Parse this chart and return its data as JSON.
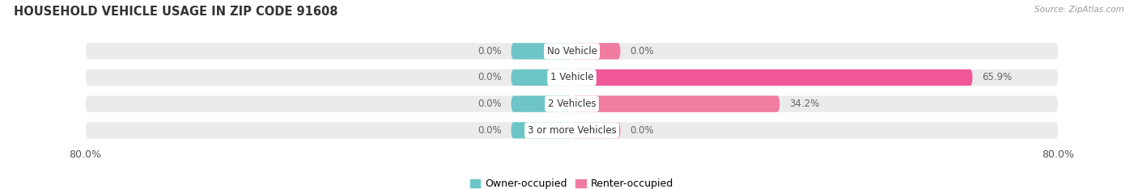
{
  "title": "HOUSEHOLD VEHICLE USAGE IN ZIP CODE 91608",
  "source": "Source: ZipAtlas.com",
  "categories": [
    "No Vehicle",
    "1 Vehicle",
    "2 Vehicles",
    "3 or more Vehicles"
  ],
  "owner_values": [
    0.0,
    0.0,
    0.0,
    0.0
  ],
  "renter_values": [
    0.0,
    65.9,
    34.2,
    0.0
  ],
  "owner_color": "#6ec5c8",
  "renter_color": "#f07ca0",
  "renter_color_bright": "#f0589a",
  "bar_bg_color": "#ebebeb",
  "axis_min": -80.0,
  "axis_max": 80.0,
  "title_fontsize": 10.5,
  "source_fontsize": 7.5,
  "tick_fontsize": 9,
  "bar_height": 0.62,
  "owner_stub": 10.0,
  "renter_stub": 8.0,
  "figsize": [
    14.06,
    2.34
  ],
  "dpi": 100
}
